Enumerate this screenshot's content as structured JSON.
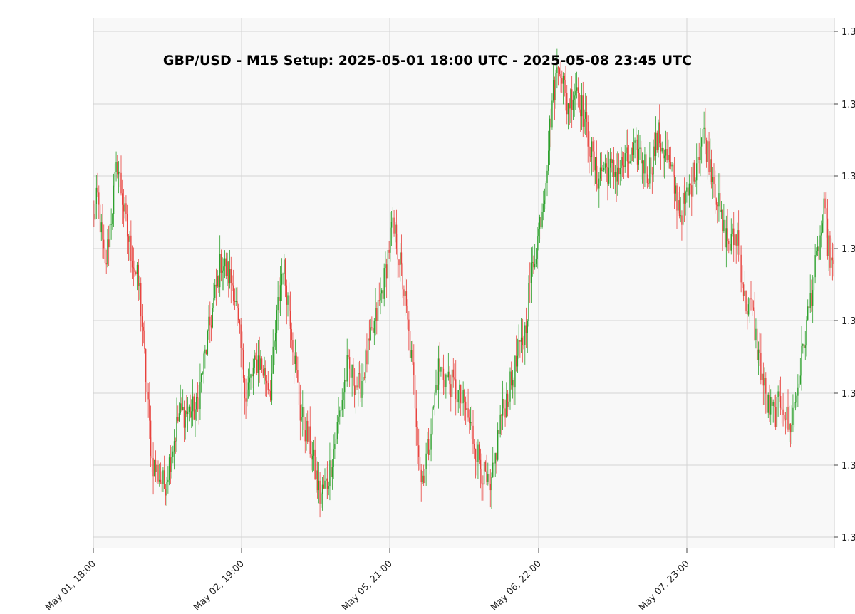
{
  "chart_data": {
    "type": "candlestick",
    "title": "GBP/USD - M15 Setup: 2025-05-01 18:00 UTC - 2025-05-08 23:45 UTC",
    "x_tick_labels": [
      "May 01, 18:00",
      "May 02, 19:00",
      "May 05, 21:00",
      "May 06, 22:00",
      "May 07, 23:00"
    ],
    "y_tick_labels": [
      "1.3",
      "1.3",
      "1.3",
      "1.3",
      "1.3",
      "1.3",
      "1.3",
      "1.3"
    ],
    "price_path": [
      [
        0,
        1.3328
      ],
      [
        4,
        1.3336
      ],
      [
        10,
        1.3308
      ],
      [
        20,
        1.335
      ],
      [
        28,
        1.3322
      ],
      [
        38,
        1.33
      ],
      [
        48,
        1.3234
      ],
      [
        58,
        1.3224
      ],
      [
        70,
        1.3252
      ],
      [
        84,
        1.3254
      ],
      [
        94,
        1.3284
      ],
      [
        104,
        1.3312
      ],
      [
        114,
        1.3302
      ],
      [
        124,
        1.326
      ],
      [
        134,
        1.3274
      ],
      [
        144,
        1.3262
      ],
      [
        150,
        1.3294
      ],
      [
        154,
        1.3311
      ],
      [
        160,
        1.329
      ],
      [
        168,
        1.3253
      ],
      [
        176,
        1.324
      ],
      [
        184,
        1.322
      ],
      [
        190,
        1.3226
      ],
      [
        196,
        1.3241
      ],
      [
        206,
        1.327
      ],
      [
        216,
        1.3262
      ],
      [
        226,
        1.3282
      ],
      [
        236,
        1.3304
      ],
      [
        242,
        1.3324
      ],
      [
        246,
        1.332
      ],
      [
        252,
        1.33
      ],
      [
        260,
        1.3264
      ],
      [
        266,
        1.3226
      ],
      [
        272,
        1.324
      ],
      [
        280,
        1.327
      ],
      [
        292,
        1.3263
      ],
      [
        302,
        1.3254
      ],
      [
        312,
        1.3236
      ],
      [
        322,
        1.322
      ],
      [
        330,
        1.325
      ],
      [
        340,
        1.3266
      ],
      [
        350,
        1.3284
      ],
      [
        354,
        1.3304
      ],
      [
        360,
        1.332
      ],
      [
        366,
        1.334
      ],
      [
        372,
        1.3374
      ],
      [
        378,
        1.339
      ],
      [
        384,
        1.3372
      ],
      [
        392,
        1.338
      ],
      [
        400,
        1.3362
      ],
      [
        408,
        1.3344
      ],
      [
        414,
        1.3348
      ],
      [
        422,
        1.3346
      ],
      [
        432,
        1.335
      ],
      [
        442,
        1.3354
      ],
      [
        450,
        1.3346
      ],
      [
        458,
        1.336
      ],
      [
        466,
        1.335
      ],
      [
        476,
        1.333
      ],
      [
        484,
        1.334
      ],
      [
        494,
        1.3362
      ],
      [
        502,
        1.3346
      ],
      [
        510,
        1.3324
      ],
      [
        516,
        1.3318
      ],
      [
        522,
        1.3322
      ],
      [
        528,
        1.3296
      ],
      [
        534,
        1.3292
      ],
      [
        538,
        1.3278
      ],
      [
        546,
        1.3256
      ],
      [
        552,
        1.3252
      ],
      [
        558,
        1.3258
      ],
      [
        564,
        1.3246
      ],
      [
        570,
        1.326
      ],
      [
        576,
        1.328
      ],
      [
        582,
        1.33
      ],
      [
        588,
        1.3316
      ],
      [
        592,
        1.333
      ],
      [
        596,
        1.3316
      ],
      [
        600,
        1.3306
      ]
    ],
    "grid": true,
    "up_color": "#2ca02c",
    "down_color": "#e8413c",
    "plot_background": "#f8f8f8",
    "grid_color": "#d4d4d4"
  }
}
